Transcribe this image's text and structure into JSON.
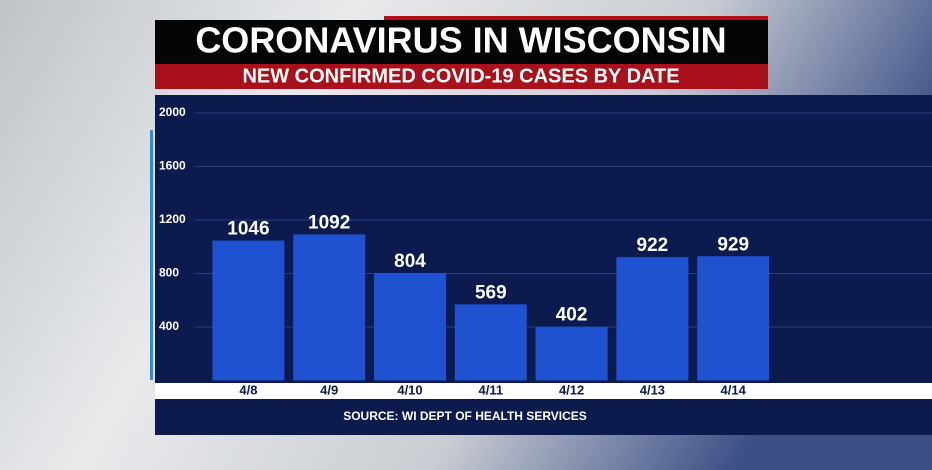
{
  "chart_data": {
    "type": "bar",
    "title": "CORONAVIRUS IN WISCONSIN",
    "subtitle": "NEW CONFIRMED COVID-19 CASES BY DATE",
    "source": "SOURCE: WI DEPT OF HEALTH SERVICES",
    "categories": [
      "4/8",
      "4/9",
      "4/10",
      "4/11",
      "4/12",
      "4/13",
      "4/14"
    ],
    "values": [
      1046,
      1092,
      804,
      569,
      402,
      922,
      929
    ],
    "color": "#1f52d0",
    "ylim": [
      0,
      2000
    ],
    "yticks": [
      400,
      800,
      1200,
      1600,
      2000
    ],
    "grid": true
  }
}
